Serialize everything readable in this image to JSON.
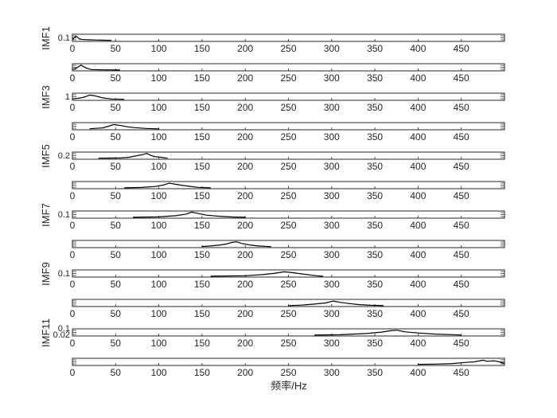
{
  "chart_data": {
    "type": "line",
    "xlabel": "频率/Hz",
    "x_ticks": [
      0,
      50,
      100,
      150,
      200,
      250,
      300,
      350,
      400,
      450
    ],
    "xlim": [
      0,
      500
    ],
    "line_color": "#000000",
    "panels": [
      {
        "ylabel": "IMF1",
        "ytick": "0.1",
        "x_range": [
          0,
          45
        ],
        "points": [
          [
            0,
            0.2
          ],
          [
            2,
            0.5
          ],
          [
            4,
            0.8
          ],
          [
            6,
            0.6
          ],
          [
            8,
            0.3
          ],
          [
            12,
            0.2
          ],
          [
            20,
            0.15
          ],
          [
            30,
            0.1
          ],
          [
            45,
            0.05
          ]
        ]
      },
      {
        "ylabel": "",
        "ytick": "",
        "x_range": [
          0,
          55
        ],
        "points": [
          [
            0,
            0.1
          ],
          [
            4,
            0.3
          ],
          [
            8,
            0.7
          ],
          [
            10,
            0.9
          ],
          [
            13,
            0.6
          ],
          [
            17,
            0.3
          ],
          [
            22,
            0.1
          ],
          [
            35,
            0.05
          ],
          [
            55,
            0.02
          ]
        ]
      },
      {
        "ylabel": "IMF3",
        "ytick": "1",
        "x_range": [
          0,
          60
        ],
        "points": [
          [
            0,
            0.1
          ],
          [
            10,
            0.3
          ],
          [
            15,
            0.5
          ],
          [
            20,
            0.8
          ],
          [
            25,
            0.7
          ],
          [
            30,
            0.5
          ],
          [
            35,
            0.3
          ],
          [
            45,
            0.1
          ],
          [
            60,
            0.05
          ]
        ]
      },
      {
        "ylabel": "",
        "ytick": "",
        "x_range": [
          20,
          100
        ],
        "points": [
          [
            20,
            0.05
          ],
          [
            35,
            0.2
          ],
          [
            42,
            0.5
          ],
          [
            48,
            0.8
          ],
          [
            52,
            0.7
          ],
          [
            57,
            0.6
          ],
          [
            63,
            0.4
          ],
          [
            72,
            0.25
          ],
          [
            85,
            0.1
          ],
          [
            100,
            0.03
          ]
        ]
      },
      {
        "ylabel": "IMF5",
        "ytick": "0.2",
        "x_range": [
          30,
          110
        ],
        "points": [
          [
            30,
            0.05
          ],
          [
            55,
            0.08
          ],
          [
            65,
            0.2
          ],
          [
            75,
            0.5
          ],
          [
            82,
            0.7
          ],
          [
            86,
            0.9
          ],
          [
            90,
            0.6
          ],
          [
            95,
            0.35
          ],
          [
            103,
            0.2
          ],
          [
            110,
            0.05
          ]
        ]
      },
      {
        "ylabel": "",
        "ytick": "",
        "x_range": [
          60,
          160
        ],
        "points": [
          [
            60,
            0.02
          ],
          [
            80,
            0.08
          ],
          [
            95,
            0.25
          ],
          [
            105,
            0.5
          ],
          [
            112,
            0.85
          ],
          [
            118,
            0.7
          ],
          [
            125,
            0.5
          ],
          [
            135,
            0.3
          ],
          [
            145,
            0.1
          ],
          [
            160,
            0.03
          ]
        ]
      },
      {
        "ylabel": "IMF7",
        "ytick": "0.1",
        "x_range": [
          70,
          200
        ],
        "points": [
          [
            70,
            0.02
          ],
          [
            100,
            0.08
          ],
          [
            120,
            0.3
          ],
          [
            132,
            0.6
          ],
          [
            138,
            0.95
          ],
          [
            145,
            0.7
          ],
          [
            155,
            0.4
          ],
          [
            170,
            0.2
          ],
          [
            185,
            0.07
          ],
          [
            200,
            0.02
          ]
        ]
      },
      {
        "ylabel": "",
        "ytick": "",
        "x_range": [
          150,
          230
        ],
        "points": [
          [
            150,
            0.05
          ],
          [
            160,
            0.15
          ],
          [
            170,
            0.3
          ],
          [
            178,
            0.5
          ],
          [
            185,
            0.8
          ],
          [
            190,
            0.9
          ],
          [
            196,
            0.6
          ],
          [
            205,
            0.35
          ],
          [
            215,
            0.15
          ],
          [
            230,
            0.03
          ]
        ]
      },
      {
        "ylabel": "IMF9",
        "ytick": "0.1",
        "x_range": [
          160,
          290
        ],
        "points": [
          [
            160,
            0.02
          ],
          [
            200,
            0.1
          ],
          [
            220,
            0.3
          ],
          [
            235,
            0.55
          ],
          [
            245,
            0.8
          ],
          [
            252,
            0.7
          ],
          [
            262,
            0.5
          ],
          [
            272,
            0.3
          ],
          [
            282,
            0.1
          ],
          [
            290,
            0.02
          ]
        ]
      },
      {
        "ylabel": "",
        "ytick": "",
        "x_range": [
          250,
          360
        ],
        "points": [
          [
            250,
            0.03
          ],
          [
            265,
            0.12
          ],
          [
            280,
            0.3
          ],
          [
            293,
            0.5
          ],
          [
            302,
            0.85
          ],
          [
            310,
            0.6
          ],
          [
            320,
            0.4
          ],
          [
            332,
            0.2
          ],
          [
            345,
            0.08
          ],
          [
            360,
            0.02
          ]
        ]
      },
      {
        "ylabel": "IMF11",
        "ytick_lines": [
          "0.1",
          "0.02"
        ],
        "x_range": [
          280,
          450
        ],
        "points": [
          [
            280,
            0.02
          ],
          [
            310,
            0.08
          ],
          [
            340,
            0.3
          ],
          [
            358,
            0.55
          ],
          [
            368,
            0.8
          ],
          [
            375,
            0.9
          ],
          [
            385,
            0.6
          ],
          [
            400,
            0.4
          ],
          [
            420,
            0.2
          ],
          [
            440,
            0.1
          ],
          [
            450,
            0.03
          ]
        ]
      },
      {
        "ylabel": "",
        "ytick": "",
        "x_range": [
          400,
          500
        ],
        "points": [
          [
            400,
            0.05
          ],
          [
            420,
            0.1
          ],
          [
            440,
            0.2
          ],
          [
            455,
            0.4
          ],
          [
            465,
            0.5
          ],
          [
            475,
            0.8
          ],
          [
            480,
            0.6
          ],
          [
            488,
            0.7
          ],
          [
            494,
            0.5
          ],
          [
            500,
            0.2
          ]
        ]
      }
    ]
  }
}
